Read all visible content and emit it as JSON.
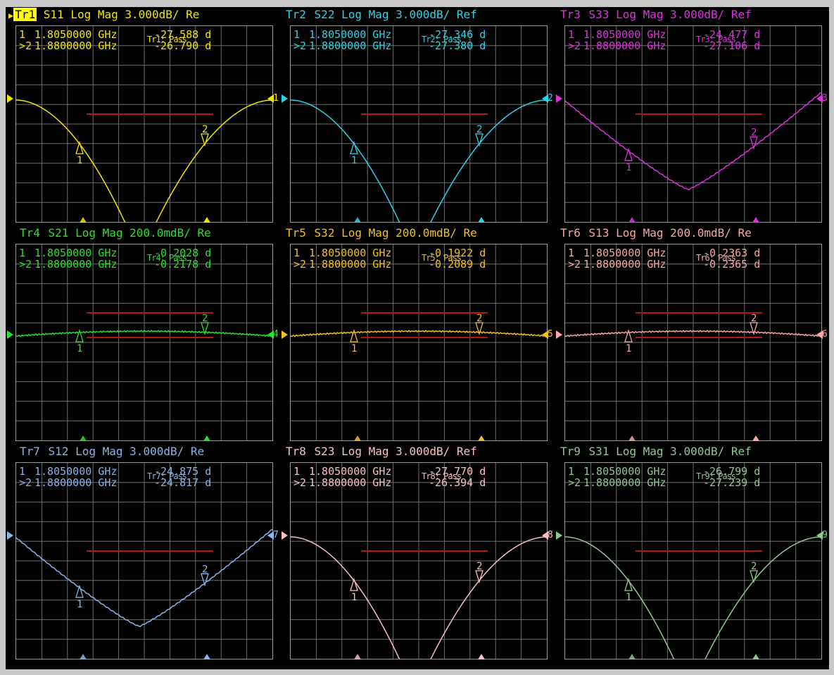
{
  "panels": [
    {
      "tag": "Tr1",
      "active": true,
      "param": "S11",
      "format": "Log Mag",
      "scale": "3.000dB/",
      "ref": "Re",
      "color": "#f2e600",
      "markers": [
        {
          "num": "1",
          "freq": "1.8050000 GHz",
          "value": "-27.588 d"
        },
        {
          "num": ">2",
          "freq": "1.8800000 GHz",
          "value": "-26.790 d"
        }
      ],
      "limit": "Tr1: Pass",
      "end_label": "1",
      "m1": "1",
      "m2": "2",
      "shape": "notch"
    },
    {
      "tag": "Tr2",
      "active": false,
      "param": "S22",
      "format": "Log Mag",
      "scale": "3.000dB/",
      "ref": "Ref",
      "color": "#2ad4e8",
      "markers": [
        {
          "num": "1",
          "freq": "1.8050000 GHz",
          "value": "-27.346 d"
        },
        {
          "num": ">2",
          "freq": "1.8800000 GHz",
          "value": "-27.380 d"
        }
      ],
      "limit": "Tr2: Pass",
      "end_label": "2",
      "m1": "1",
      "m2": "2",
      "shape": "notch"
    },
    {
      "tag": "Tr3",
      "active": false,
      "param": "S33",
      "format": "Log Mag",
      "scale": "3.000dB/",
      "ref": "Ref",
      "color": "#e030e0",
      "markers": [
        {
          "num": "1",
          "freq": "1.8050000 GHz",
          "value": "-24.477 d"
        },
        {
          "num": ">2",
          "freq": "1.8800000 GHz",
          "value": "-27.106 d"
        }
      ],
      "limit": "Tr3: Pass",
      "end_label": "3",
      "m1": "1",
      "m2": "2",
      "shape": "vee"
    },
    {
      "tag": "Tr4",
      "active": false,
      "param": "S21",
      "format": "Log Mag",
      "scale": "200.0mdB/",
      "ref": "Re",
      "color": "#2ce02c",
      "markers": [
        {
          "num": "1",
          "freq": "1.8050000 GHz",
          "value": "-0.2028 d"
        },
        {
          "num": ">2",
          "freq": "1.8800000 GHz",
          "value": "-0.2178 d"
        }
      ],
      "limit": "Tr4: Pass",
      "end_label": "4",
      "m1": "1",
      "m2": "2",
      "shape": "flat"
    },
    {
      "tag": "Tr5",
      "active": false,
      "param": "S32",
      "format": "Log Mag",
      "scale": "200.0mdB/",
      "ref": "Re",
      "color": "#f0c020",
      "markers": [
        {
          "num": "1",
          "freq": "1.8050000 GHz",
          "value": "-0.1922 d"
        },
        {
          "num": ">2",
          "freq": "1.8800000 GHz",
          "value": "-0.2089 d"
        }
      ],
      "limit": "Tr5: Pass",
      "end_label": "5",
      "m1": "1",
      "m2": "2",
      "shape": "flat"
    },
    {
      "tag": "Tr6",
      "active": false,
      "param": "S13",
      "format": "Log Mag",
      "scale": "200.0mdB/",
      "ref": "Re",
      "color": "#f4a8a0",
      "markers": [
        {
          "num": "1",
          "freq": "1.8050000 GHz",
          "value": "-0.2363 d"
        },
        {
          "num": ">2",
          "freq": "1.8800000 GHz",
          "value": "-0.2365 d"
        }
      ],
      "limit": "Tr6: Pass",
      "end_label": "6",
      "m1": "1",
      "m2": "2",
      "shape": "flat"
    },
    {
      "tag": "Tr7",
      "active": false,
      "param": "S12",
      "format": "Log Mag",
      "scale": "3.000dB/",
      "ref": "Re",
      "color": "#88b4e8",
      "markers": [
        {
          "num": "1",
          "freq": "1.8050000 GHz",
          "value": "-24.875 d"
        },
        {
          "num": ">2",
          "freq": "1.8800000 GHz",
          "value": "-24.817 d"
        }
      ],
      "limit": "Tr7: Pass",
      "end_label": "7",
      "m1": "1",
      "m2": "2",
      "shape": "vee"
    },
    {
      "tag": "Tr8",
      "active": false,
      "param": "S23",
      "format": "Log Mag",
      "scale": "3.000dB/",
      "ref": "Ref",
      "color": "#f8c0c0",
      "markers": [
        {
          "num": "1",
          "freq": "1.8050000 GHz",
          "value": "-27.770 d"
        },
        {
          "num": ">2",
          "freq": "1.8800000 GHz",
          "value": "-26.394 d"
        }
      ],
      "limit": "Tr8: Pass",
      "end_label": "8",
      "m1": "1",
      "m2": "2",
      "shape": "notch"
    },
    {
      "tag": "Tr9",
      "active": false,
      "param": "S31",
      "format": "Log Mag",
      "scale": "3.000dB/",
      "ref": "Ref",
      "color": "#90c890",
      "markers": [
        {
          "num": "1",
          "freq": "1.8050000 GHz",
          "value": "-26.799 d"
        },
        {
          "num": ">2",
          "freq": "1.8800000 GHz",
          "value": "-27.239 d"
        }
      ],
      "limit": "Tr9: Pass",
      "end_label": "9",
      "m1": "1",
      "m2": "2",
      "shape": "notch"
    }
  ],
  "colors": {
    "limit_line": "#b01818",
    "grid": "#6e6e6e",
    "background": "#000000"
  }
}
